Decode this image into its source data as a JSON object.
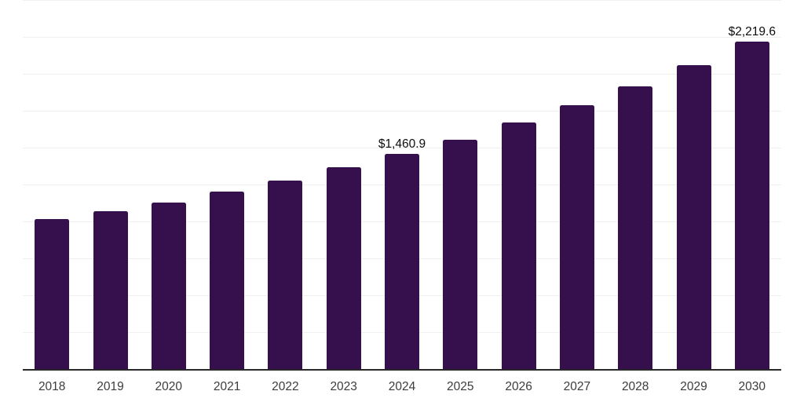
{
  "chart_data": {
    "type": "bar",
    "categories": [
      "2018",
      "2019",
      "2020",
      "2021",
      "2022",
      "2023",
      "2024",
      "2025",
      "2026",
      "2027",
      "2028",
      "2029",
      "2030"
    ],
    "values": [
      1015,
      1070,
      1131,
      1205,
      1280,
      1366,
      1460.9,
      1556,
      1673,
      1787,
      1919,
      2063,
      2219.6
    ],
    "value_labels": [
      "",
      "",
      "",
      "",
      "",
      "",
      "$1,460.9",
      "",
      "",
      "",
      "",
      "",
      "$2,219.6"
    ],
    "title": "",
    "xlabel": "",
    "ylabel": "",
    "ylim": [
      0,
      2500
    ],
    "gridline_interval": 250,
    "grid": "horizontal",
    "legend": "none",
    "y_axis_labels": "none",
    "bar_color": "#36104d",
    "axis_line_color": "#282828",
    "gridline_color": "#efefef",
    "tick_label_color": "#3c3c3c",
    "data_label_color": "#0d0d0d",
    "background_color": "#ffffff"
  }
}
